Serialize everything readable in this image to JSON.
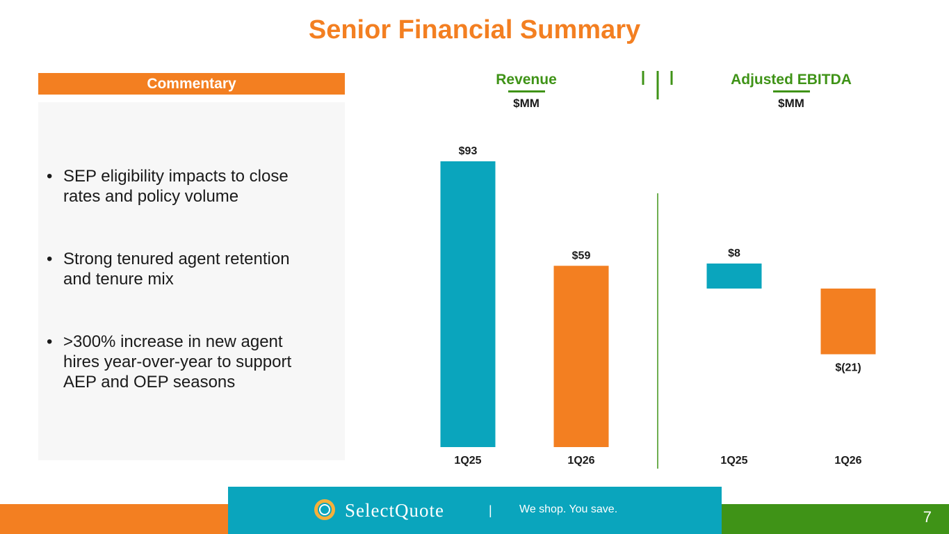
{
  "slide": {
    "title": "Senior Financial Summary",
    "page_number": "7"
  },
  "commentary": {
    "header": "Commentary",
    "bullets": [
      "SEP eligibility impacts to close rates and policy volume",
      "Strong tenured agent retention and tenure mix",
      ">300% increase in new agent hires year-over-year to support AEP and OEP seasons"
    ],
    "bullet_symbol": "•"
  },
  "colors": {
    "orange": "#F37F21",
    "teal": "#0AA5BD",
    "green": "#3F9317",
    "panel": "#F7F7F7"
  },
  "footer": {
    "logo_text": "SelectQuote",
    "separator": "|",
    "tagline": "We shop. You save."
  },
  "chart_data": [
    {
      "type": "bar",
      "title": "Revenue",
      "unit": "$MM",
      "categories": [
        "1Q25",
        "1Q26"
      ],
      "values": [
        93,
        59
      ],
      "labels": [
        "$93",
        "$59"
      ],
      "bar_colors": [
        "#0AA5BD",
        "#F37F21"
      ],
      "ylim": [
        0,
        93
      ]
    },
    {
      "type": "bar",
      "subtype": "waterfall",
      "title": "Adjusted EBITDA",
      "unit": "$MM",
      "categories": [
        "1Q25",
        "1Q26"
      ],
      "values": [
        8,
        -21
      ],
      "labels": [
        "$8",
        "$(21)"
      ],
      "bar_colors": [
        "#0AA5BD",
        "#F37F21"
      ]
    }
  ]
}
